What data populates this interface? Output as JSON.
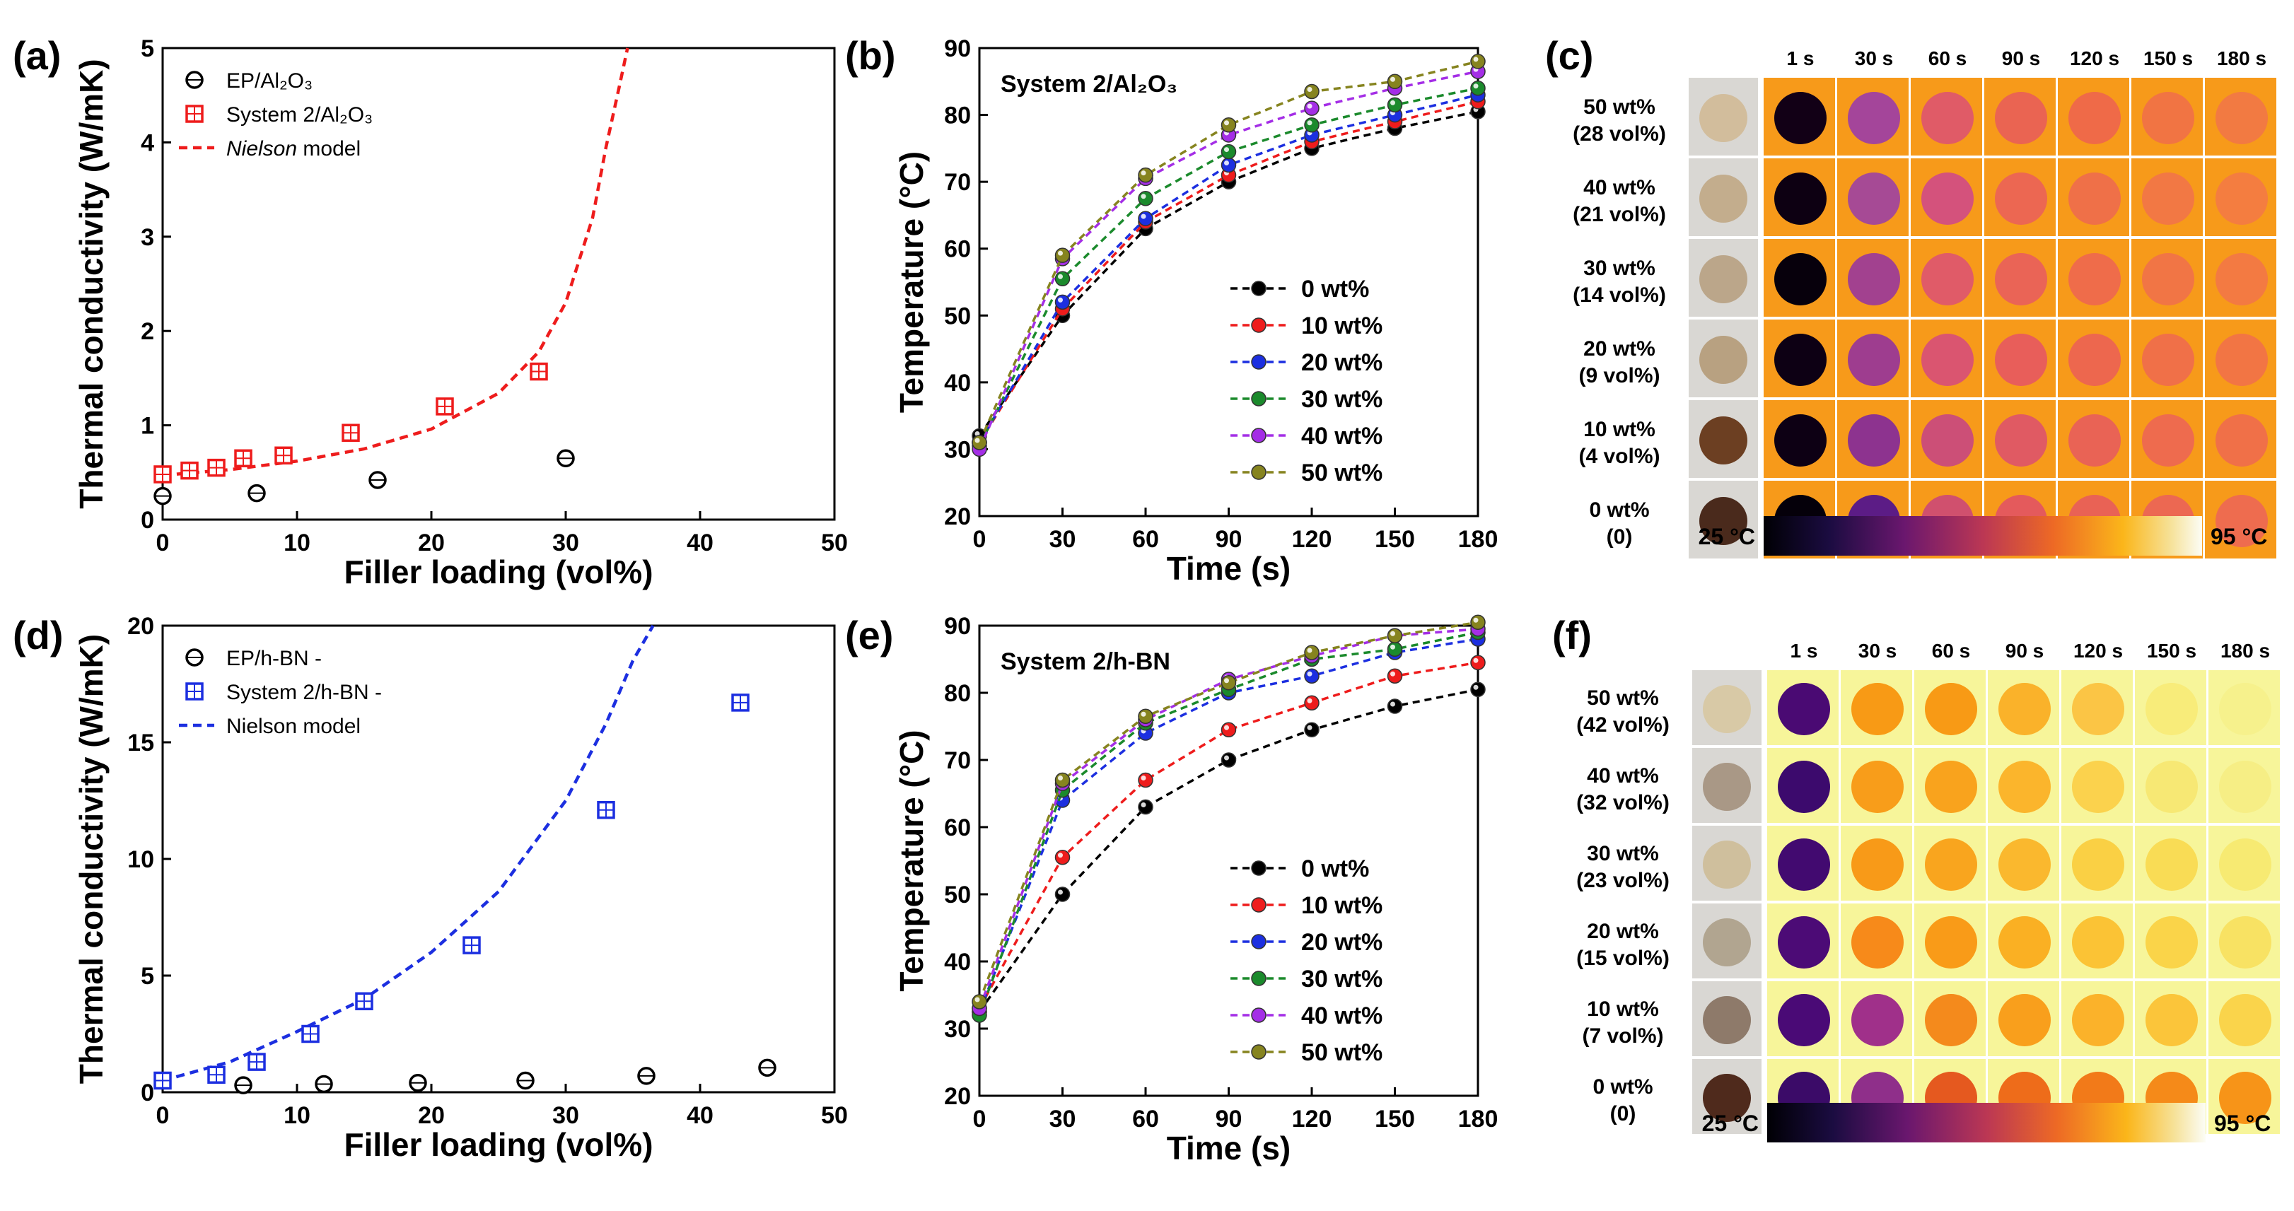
{
  "colors": {
    "black": "#000000",
    "red": "#ee1c1c",
    "blue": "#1c2fe0",
    "green": "#1b8a2c",
    "purple": "#a42ee6",
    "olive": "#86841f",
    "heat_bg_c": "#f79a1a",
    "heat_bg_f": "#f7f59a"
  },
  "panels": {
    "a": {
      "label": "(a)"
    },
    "b": {
      "label": "(b)"
    },
    "c": {
      "label": "(c)"
    },
    "d": {
      "label": "(d)"
    },
    "e": {
      "label": "(e)"
    },
    "f": {
      "label": "(f)"
    }
  },
  "chart_data": [
    {
      "id": "a",
      "type": "scatter",
      "xlabel": "Filler loading (vol%)",
      "ylabel": "Thermal conductivity (W/mK)",
      "xlim": [
        0,
        50
      ],
      "ylim": [
        0,
        5
      ],
      "xticks": [
        0,
        10,
        20,
        30,
        40,
        50
      ],
      "yticks": [
        0,
        1,
        2,
        3,
        4,
        5
      ],
      "legend": [
        {
          "text": "EP/Al₂O₃",
          "marker": "circle",
          "color": "black"
        },
        {
          "text": "System 2/Al₂O₃",
          "marker": "square",
          "color": "red"
        },
        {
          "text_italic": "Nielson",
          "text": " model",
          "marker": "dashed",
          "color": "red"
        }
      ],
      "series": [
        {
          "name": "EP/Al₂O₃",
          "marker": "circle",
          "color": "black",
          "x": [
            0,
            7,
            16,
            30
          ],
          "y": [
            0.25,
            0.28,
            0.42,
            0.65
          ]
        },
        {
          "name": "System 2/Al₂O₃",
          "marker": "square",
          "color": "red",
          "x": [
            0,
            2,
            4,
            6,
            9,
            14,
            21,
            28
          ],
          "y": [
            0.48,
            0.52,
            0.55,
            0.65,
            0.68,
            0.92,
            1.2,
            1.57
          ]
        }
      ],
      "model_curve": {
        "name": "Nielson model",
        "color": "red",
        "x": [
          0,
          5,
          10,
          15,
          20,
          25,
          28,
          30,
          32,
          33,
          34,
          34.6
        ],
        "y": [
          0.47,
          0.53,
          0.62,
          0.75,
          0.96,
          1.34,
          1.78,
          2.3,
          3.2,
          3.95,
          4.6,
          5.0
        ]
      }
    },
    {
      "id": "b",
      "type": "line",
      "title": "System 2/Al₂O₃",
      "xlabel": "Time (s)",
      "ylabel": "Temperature (°C)",
      "xlim": [
        0,
        180
      ],
      "ylim": [
        20,
        90
      ],
      "xticks": [
        0,
        30,
        60,
        90,
        120,
        150,
        180
      ],
      "yticks": [
        20,
        30,
        40,
        50,
        60,
        70,
        80,
        90
      ],
      "x": [
        0,
        30,
        60,
        90,
        120,
        150,
        180
      ],
      "series": [
        {
          "name": "0 wt%",
          "color": "black",
          "values": [
            32,
            50,
            63,
            70,
            75,
            78,
            80.5
          ]
        },
        {
          "name": "10 wt%",
          "color": "red",
          "values": [
            31,
            51,
            64,
            71,
            76,
            79,
            82
          ]
        },
        {
          "name": "20 wt%",
          "color": "blue",
          "values": [
            31,
            52,
            64.5,
            72.5,
            77,
            80,
            83
          ]
        },
        {
          "name": "30 wt%",
          "color": "green",
          "values": [
            30.5,
            55.5,
            67.5,
            74.5,
            78.5,
            81.5,
            84
          ]
        },
        {
          "name": "40 wt%",
          "color": "purple",
          "values": [
            30,
            58.5,
            70.5,
            77,
            81,
            84,
            86.5
          ]
        },
        {
          "name": "50 wt%",
          "color": "olive",
          "values": [
            31,
            59,
            71,
            78.5,
            83.5,
            85,
            88
          ]
        }
      ]
    },
    {
      "id": "d",
      "type": "scatter",
      "xlabel": "Filler loading (vol%)",
      "ylabel": "Thermal conductivity (W/mK)",
      "xlim": [
        0,
        50
      ],
      "ylim": [
        0,
        20
      ],
      "xticks": [
        0,
        10,
        20,
        30,
        40,
        50
      ],
      "yticks": [
        0,
        5,
        10,
        15,
        20
      ],
      "legend": [
        {
          "text": "EP/h-BN -",
          "marker": "circle",
          "color": "black"
        },
        {
          "text": "System 2/h-BN -",
          "marker": "square",
          "color": "blue"
        },
        {
          "text": "Nielson model",
          "marker": "dashed",
          "color": "blue"
        }
      ],
      "series": [
        {
          "name": "EP/h-BN",
          "marker": "circle",
          "color": "black",
          "x": [
            6,
            12,
            19,
            27,
            36,
            45
          ],
          "y": [
            0.3,
            0.35,
            0.4,
            0.5,
            0.7,
            1.05
          ]
        },
        {
          "name": "System 2/h-BN",
          "marker": "square",
          "color": "blue",
          "x": [
            0,
            4,
            7,
            11,
            15,
            23,
            33,
            43
          ],
          "y": [
            0.5,
            0.75,
            1.3,
            2.5,
            3.9,
            6.3,
            12.1,
            16.7
          ]
        }
      ],
      "model_curve": {
        "name": "Nielson model",
        "color": "blue",
        "x": [
          0,
          5,
          10,
          15,
          20,
          25,
          30,
          33,
          35,
          36.5
        ],
        "y": [
          0.5,
          1.3,
          2.6,
          4.0,
          6.0,
          8.6,
          12.5,
          15.8,
          18.5,
          20.0
        ]
      }
    },
    {
      "id": "e",
      "type": "line",
      "title": "System 2/h-BN",
      "xlabel": "Time (s)",
      "ylabel": "Temperature (°C)",
      "xlim": [
        0,
        180
      ],
      "ylim": [
        20,
        90
      ],
      "xticks": [
        0,
        30,
        60,
        90,
        120,
        150,
        180
      ],
      "yticks": [
        20,
        30,
        40,
        50,
        60,
        70,
        80,
        90
      ],
      "x": [
        0,
        30,
        60,
        90,
        120,
        150,
        180
      ],
      "series": [
        {
          "name": "0 wt%",
          "color": "black",
          "values": [
            32.5,
            50,
            63,
            70,
            74.5,
            78,
            80.5
          ]
        },
        {
          "name": "10 wt%",
          "color": "red",
          "values": [
            33,
            55.5,
            67,
            74.5,
            78.5,
            82.5,
            84.5
          ]
        },
        {
          "name": "20 wt%",
          "color": "blue",
          "values": [
            32.5,
            64,
            74,
            80,
            82.5,
            86,
            88
          ]
        },
        {
          "name": "30 wt%",
          "color": "green",
          "values": [
            32,
            65.5,
            75.5,
            80.5,
            85,
            86.5,
            89
          ]
        },
        {
          "name": "40 wt%",
          "color": "purple",
          "values": [
            33,
            66.5,
            76,
            82,
            85.5,
            88.5,
            89.5
          ]
        },
        {
          "name": "50 wt%",
          "color": "olive",
          "values": [
            34,
            67,
            76.5,
            81.5,
            86,
            88.5,
            90.5
          ]
        }
      ]
    }
  ],
  "heatmaps": {
    "c": {
      "times": [
        "1 s",
        "30 s",
        "60 s",
        "90 s",
        "120 s",
        "150 s",
        "180 s"
      ],
      "rows": [
        {
          "line1": "50 wt%",
          "line2": "(28 vol%)",
          "photo": "#d2bd9c",
          "spots": [
            "#120016",
            "#a4459a",
            "#e05b67",
            "#ea6452",
            "#ef6a48",
            "#f17443",
            "#f27a42"
          ]
        },
        {
          "line1": "40 wt%",
          "line2": "(21 vol%)",
          "photo": "#c3ad8d",
          "spots": [
            "#0d0012",
            "#a64a95",
            "#d4527c",
            "#ec6752",
            "#ef7048",
            "#f27844",
            "#f47d40"
          ]
        },
        {
          "line1": "30 wt%",
          "line2": "(14 vol%)",
          "photo": "#bba68a",
          "spots": [
            "#07000c",
            "#a2418f",
            "#e05b68",
            "#ea6456",
            "#ef6c4a",
            "#f17545",
            "#f37a42"
          ]
        },
        {
          "line1": "20 wt%",
          "line2": "(9 vol%)",
          "photo": "#b8a181",
          "spots": [
            "#0d0014",
            "#9e3d8f",
            "#da5570",
            "#e85e5a",
            "#ed674e",
            "#f07048",
            "#f27544"
          ]
        },
        {
          "line1": "10 wt%",
          "line2": "(4 vol%)",
          "photo": "#6c3f22",
          "spots": [
            "#0d0014",
            "#8d338f",
            "#cc4f77",
            "#e05a63",
            "#e96355",
            "#ee6b4e",
            "#f07048"
          ]
        },
        {
          "line1": "0 wt%",
          "line2": "(0)",
          "photo": "#4a2a1c",
          "spots": [
            "#05000a",
            "#5c1c86",
            "#d0506e",
            "#e45a5c",
            "#e96255",
            "#ec6852",
            "#ee6c4f"
          ]
        }
      ],
      "scale_min": "25 °C",
      "scale_max": "95 °C"
    },
    "f": {
      "times": [
        "1 s",
        "30 s",
        "60 s",
        "90 s",
        "120 s",
        "150 s",
        "180 s"
      ],
      "rows": [
        {
          "line1": "50 wt%",
          "line2": "(42 vol%)",
          "photo": "#d8c9a6",
          "spots": [
            "#4a0a73",
            "#f89a15",
            "#f89a15",
            "#fab22a",
            "#fbc545",
            "#f8ec7a",
            "#f6f18c"
          ]
        },
        {
          "line1": "40 wt%",
          "line2": "(32 vol%)",
          "photo": "#a99886",
          "spots": [
            "#3c0a6d",
            "#f89d1a",
            "#f9a31d",
            "#fbb52c",
            "#fbd24d",
            "#f7e874",
            "#f6ee85"
          ]
        },
        {
          "line1": "30 wt%",
          "line2": "(23 vol%)",
          "photo": "#cfbf9d",
          "spots": [
            "#420a70",
            "#f89a18",
            "#f9a51e",
            "#fab82e",
            "#fad044",
            "#f9dc55",
            "#f7ea72"
          ]
        },
        {
          "line1": "20 wt%",
          "line2": "(15 vol%)",
          "photo": "#b1a590",
          "spots": [
            "#4c0b76",
            "#f78a1a",
            "#f99b18",
            "#fab023",
            "#fbc335",
            "#fad449",
            "#f8e263"
          ]
        },
        {
          "line1": "10 wt%",
          "line2": "(7 vol%)",
          "photo": "#8e7a6a",
          "spots": [
            "#4a0a76",
            "#a0308a",
            "#f48a1c",
            "#f99f1c",
            "#fbb22a",
            "#fbc53a",
            "#fad44b"
          ]
        },
        {
          "line1": "0 wt%",
          "line2": "(0)",
          "photo": "#4f2a1c",
          "spots": [
            "#3b0b68",
            "#8f2f8a",
            "#e5591f",
            "#ee6c1a",
            "#f27a19",
            "#f58a19",
            "#f79418"
          ]
        }
      ],
      "scale_min": "25 °C",
      "scale_max": "95 °C"
    }
  }
}
